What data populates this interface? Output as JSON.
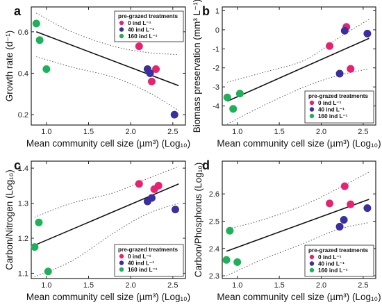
{
  "figure": {
    "xlabel": "Mean community cell size (µm³) (Log₁₀)"
  },
  "legend": {
    "title": "pre-grazed treatments",
    "entries": [
      {
        "label": "0 ind L⁻¹",
        "color": "#e8226f"
      },
      {
        "label": "40 ind L⁻¹",
        "color": "#3a2fa0"
      },
      {
        "label": "160 ind L⁻¹",
        "color": "#1fb15a"
      }
    ]
  },
  "chart_data": [
    {
      "panel": "a",
      "type": "scatter",
      "ylabel": "Growth rate (d⁻¹)",
      "xlabel": "Mean community cell size (µm³) (Log₁₀)",
      "xlim": [
        0.82,
        2.65
      ],
      "ylim": [
        0.15,
        0.72
      ],
      "xticks": [
        1.0,
        1.5,
        2.0,
        2.5
      ],
      "xtick_labels": [
        "1.0",
        "1.5",
        "2.0",
        "2.5"
      ],
      "yticks": [
        0.2,
        0.4,
        0.6
      ],
      "ytick_labels": [
        "0.2",
        "0.4",
        "0.6"
      ],
      "legend_position": "top-right",
      "series": [
        {
          "name": "0 ind L⁻¹",
          "x": [
            2.1,
            2.3,
            2.25
          ],
          "y": [
            0.53,
            0.42,
            0.36
          ]
        },
        {
          "name": "40 ind L⁻¹",
          "x": [
            2.2,
            2.23,
            2.52
          ],
          "y": [
            0.42,
            0.4,
            0.2
          ]
        },
        {
          "name": "160 ind L⁻¹",
          "x": [
            0.88,
            0.92,
            1.0
          ],
          "y": [
            0.64,
            0.56,
            0.42
          ]
        }
      ],
      "fit": {
        "x": [
          0.88,
          2.57
        ],
        "y": [
          0.6,
          0.34
        ]
      },
      "ci_upper": {
        "x": [
          0.88,
          1.3,
          1.8,
          2.2,
          2.57
        ],
        "y": [
          0.69,
          0.6,
          0.53,
          0.5,
          0.49
        ]
      },
      "ci_lower": {
        "x": [
          0.88,
          1.3,
          1.8,
          2.2,
          2.57
        ],
        "y": [
          0.48,
          0.43,
          0.38,
          0.31,
          0.22
        ]
      }
    },
    {
      "panel": "b",
      "type": "scatter",
      "ylabel": "Biomass preservation (mm³ L⁻¹)",
      "xlabel": "Mean community cell size (µm³) (Log₁₀)",
      "xlim": [
        0.82,
        2.65
      ],
      "ylim": [
        -5.0,
        1.2
      ],
      "xticks": [
        1.0,
        1.5,
        2.0,
        2.5
      ],
      "xtick_labels": [
        "1.0",
        "1.5",
        "2.0",
        "2.5"
      ],
      "yticks": [
        -4,
        -3,
        -2,
        -1,
        0,
        1
      ],
      "ytick_labels": [
        "-4",
        "-3",
        "-2",
        "-1",
        "0",
        "1"
      ],
      "legend_position": "bottom-right",
      "series": [
        {
          "name": "0 ind L⁻¹",
          "x": [
            2.1,
            2.3,
            2.35
          ],
          "y": [
            -0.85,
            0.15,
            -2.05
          ]
        },
        {
          "name": "40 ind L⁻¹",
          "x": [
            2.22,
            2.28,
            2.55
          ],
          "y": [
            -2.3,
            -0.05,
            -0.2
          ]
        },
        {
          "name": "160 ind L⁻¹",
          "x": [
            0.88,
            0.95,
            1.03
          ],
          "y": [
            -3.55,
            -4.15,
            -3.35
          ]
        }
      ],
      "fit": {
        "x": [
          0.88,
          2.57
        ],
        "y": [
          -3.75,
          -0.45
        ]
      },
      "ci_upper": {
        "x": [
          0.88,
          1.3,
          1.8,
          2.2,
          2.57
        ],
        "y": [
          -2.75,
          -2.25,
          -1.6,
          -0.45,
          0.55
        ]
      },
      "ci_lower": {
        "x": [
          0.88,
          1.3,
          1.8,
          2.2,
          2.57
        ],
        "y": [
          -4.95,
          -4.0,
          -3.0,
          -2.4,
          -2.05
        ]
      }
    },
    {
      "panel": "c",
      "type": "scatter",
      "ylabel": "Carbon/Nitrogen (Log₁₀)",
      "xlabel": "Mean community cell size (µm³) (Log₁₀)",
      "xlim": [
        0.82,
        2.65
      ],
      "ylim": [
        1.085,
        1.42
      ],
      "xticks": [
        1.0,
        1.5,
        2.0,
        2.5
      ],
      "xtick_labels": [
        "1.0",
        "1.5",
        "2.0",
        "2.5"
      ],
      "yticks": [
        1.1,
        1.2,
        1.3,
        1.4
      ],
      "ytick_labels": [
        "1.1",
        "1.2",
        "1.3",
        "1.4"
      ],
      "legend_position": "bottom-right",
      "series": [
        {
          "name": "0 ind L⁻¹",
          "x": [
            2.1,
            2.28,
            2.33
          ],
          "y": [
            1.355,
            1.34,
            1.35
          ]
        },
        {
          "name": "40 ind L⁻¹",
          "x": [
            2.2,
            2.25,
            2.53
          ],
          "y": [
            1.305,
            1.315,
            1.282
          ]
        },
        {
          "name": "160 ind L⁻¹",
          "x": [
            0.86,
            0.91,
            1.02
          ],
          "y": [
            1.175,
            1.245,
            1.105
          ]
        }
      ],
      "fit": {
        "x": [
          0.86,
          2.57
        ],
        "y": [
          1.18,
          1.355
        ]
      },
      "ci_upper": {
        "x": [
          0.86,
          1.3,
          1.8,
          2.2,
          2.57
        ],
        "y": [
          1.26,
          1.3,
          1.33,
          1.37,
          1.405
        ]
      },
      "ci_lower": {
        "x": [
          0.86,
          1.3,
          1.8,
          2.2,
          2.57
        ],
        "y": [
          1.09,
          1.135,
          1.215,
          1.27,
          1.3
        ]
      }
    },
    {
      "panel": "d",
      "type": "scatter",
      "ylabel": "Carbon/Phosphorus (Log₁₀)",
      "xlabel": "Mean community cell size (µm³) (Log₁₀)",
      "xlim": [
        0.82,
        2.65
      ],
      "ylim": [
        2.29,
        2.72
      ],
      "xticks": [
        1.0,
        1.5,
        2.0,
        2.5
      ],
      "xtick_labels": [
        "1.0",
        "1.5",
        "2.0",
        "2.5"
      ],
      "yticks": [
        2.3,
        2.4,
        2.5,
        2.6
      ],
      "ytick_labels": [
        "2.3",
        "2.4",
        "2.5",
        "2.6"
      ],
      "legend_position": "bottom-right",
      "series": [
        {
          "name": "0 ind L⁻¹",
          "x": [
            2.1,
            2.28,
            2.35
          ],
          "y": [
            2.565,
            2.628,
            2.562
          ]
        },
        {
          "name": "40 ind L⁻¹",
          "x": [
            2.22,
            2.27,
            2.55
          ],
          "y": [
            2.48,
            2.505,
            2.548
          ]
        },
        {
          "name": "160 ind L⁻¹",
          "x": [
            0.87,
            0.91,
            1.0
          ],
          "y": [
            2.358,
            2.465,
            2.35
          ]
        }
      ],
      "fit": {
        "x": [
          0.87,
          2.57
        ],
        "y": [
          2.39,
          2.58
        ]
      },
      "ci_upper": {
        "x": [
          0.87,
          1.3,
          1.8,
          2.2,
          2.57
        ],
        "y": [
          2.47,
          2.505,
          2.56,
          2.62,
          2.68
        ]
      },
      "ci_lower": {
        "x": [
          0.87,
          1.3,
          1.8,
          2.2,
          2.57
        ],
        "y": [
          2.3,
          2.36,
          2.42,
          2.47,
          2.495
        ]
      }
    }
  ]
}
